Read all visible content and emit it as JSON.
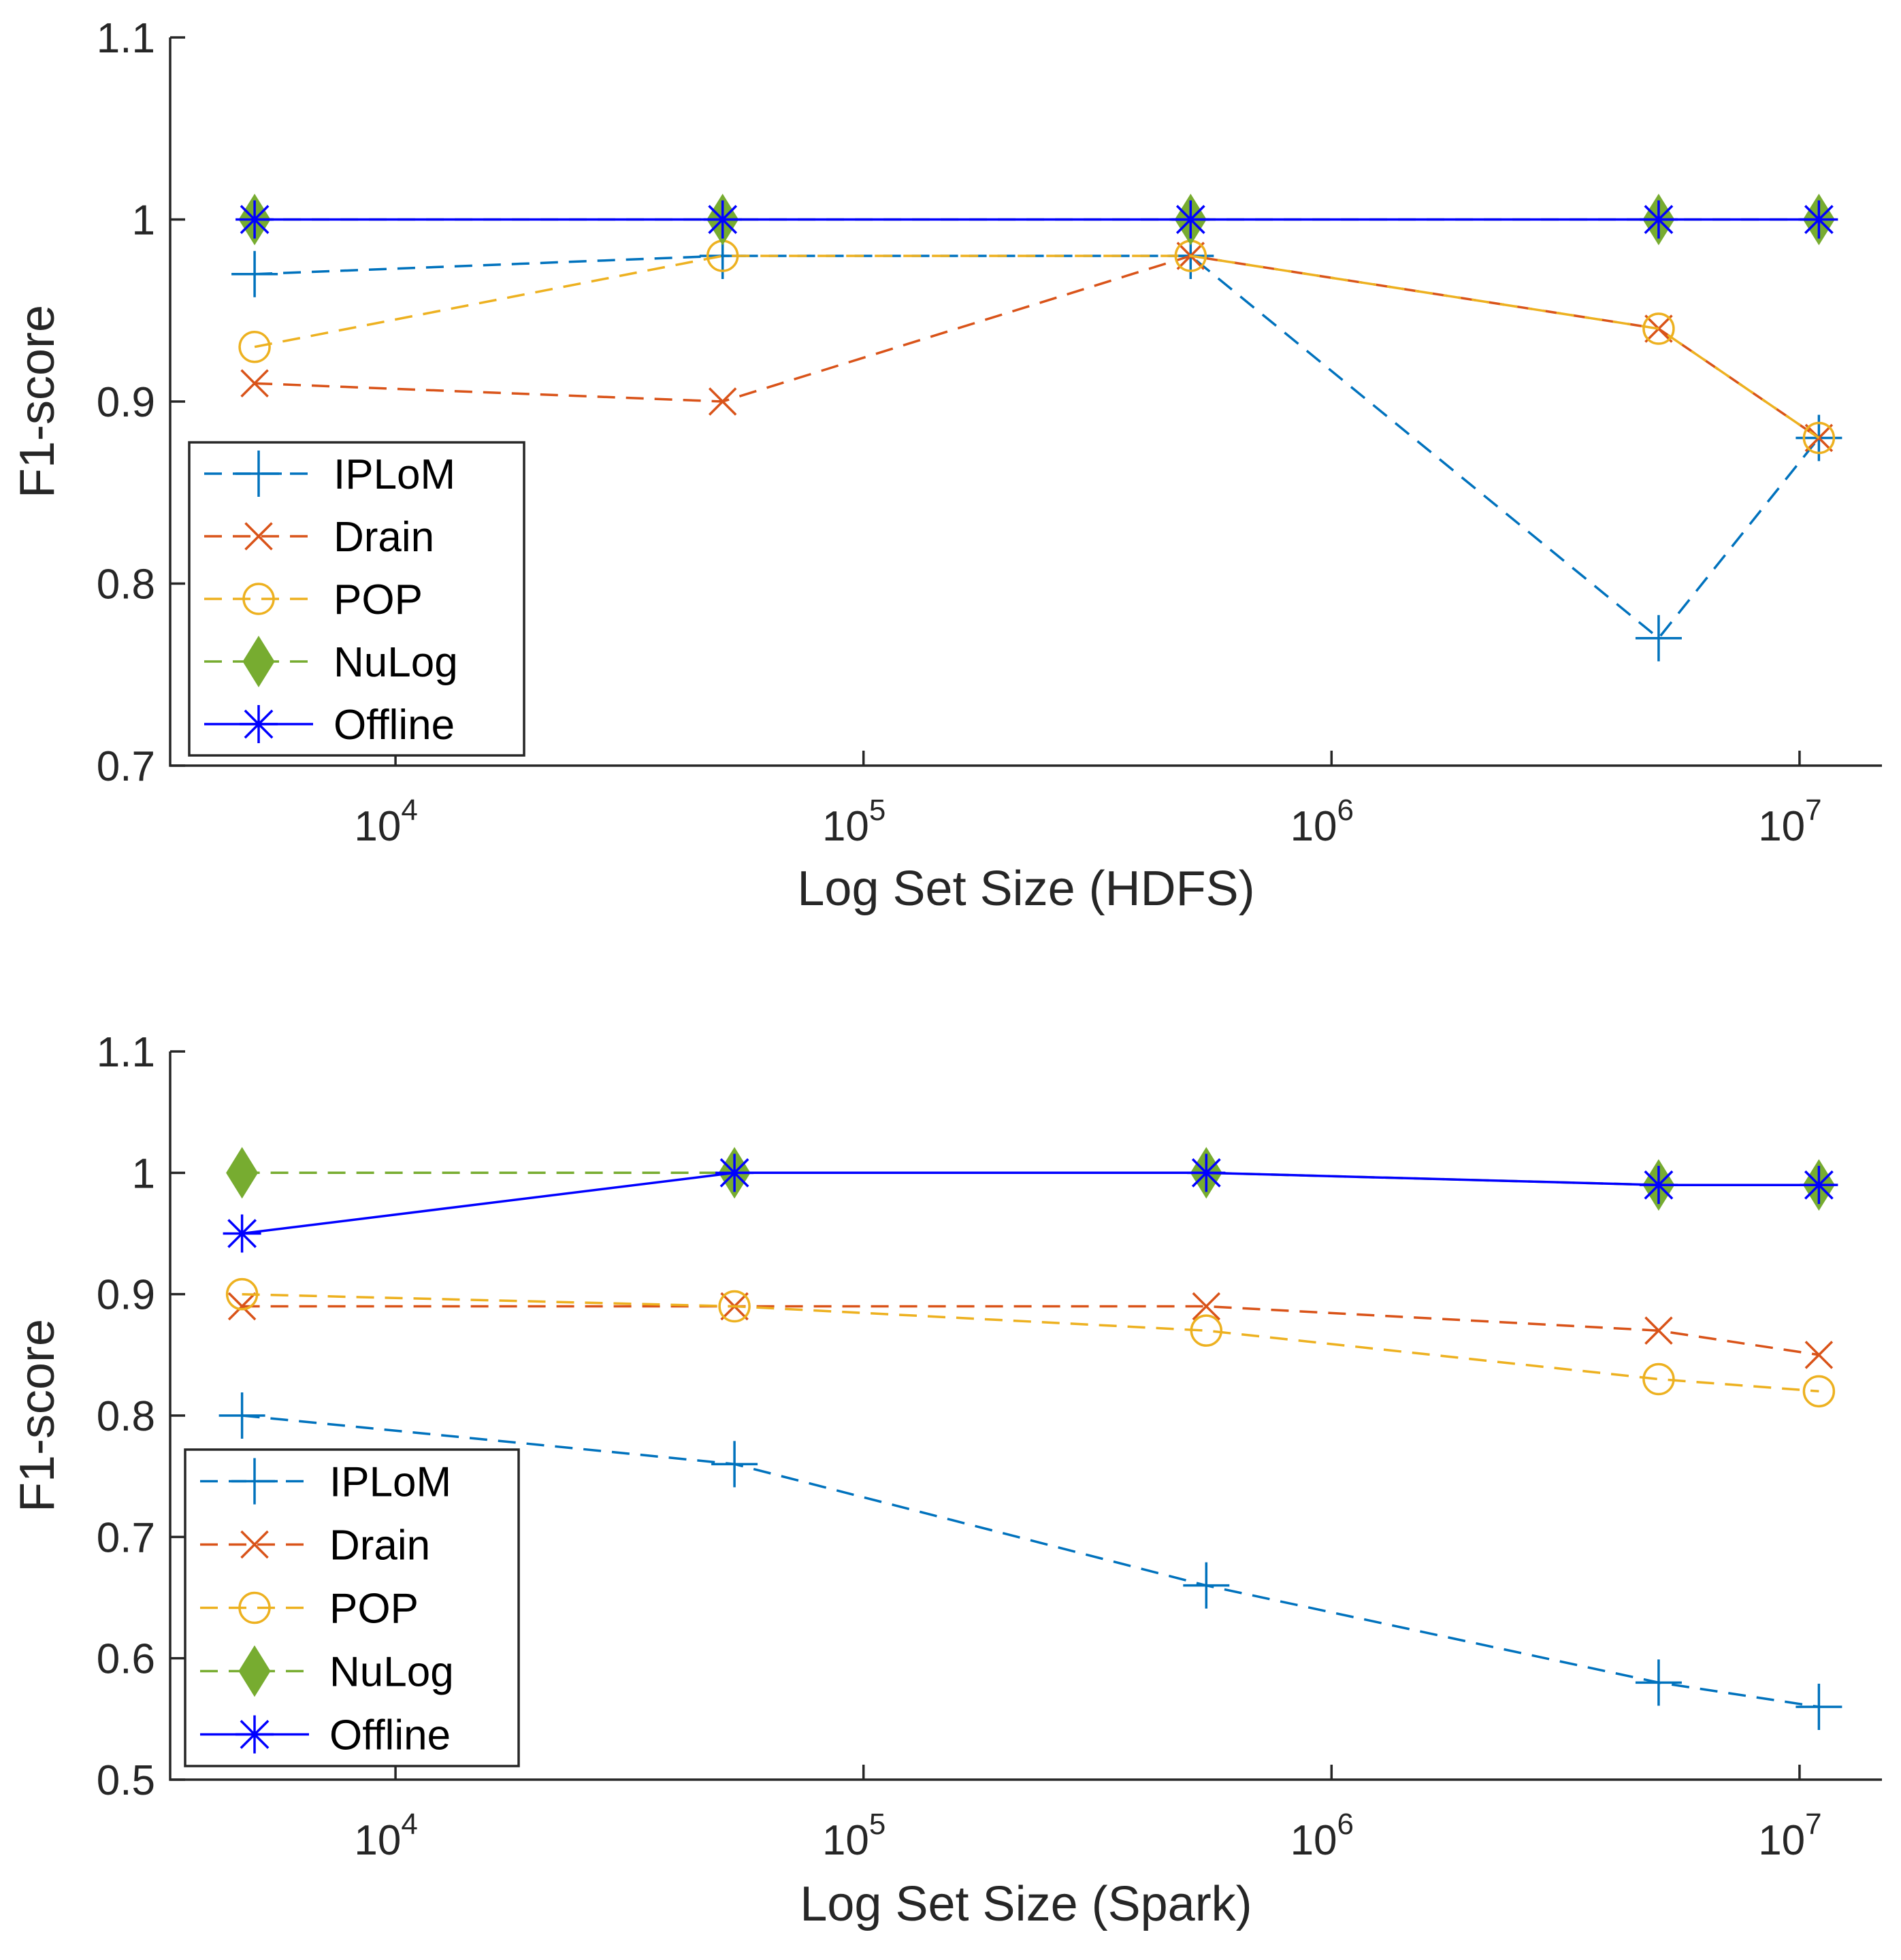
{
  "colors": {
    "IPLoM": "#0072BD",
    "Drain": "#D95319",
    "POP": "#EDB120",
    "NuLog": "#77AC30",
    "Offline": "#0000FF"
  },
  "chart_data": [
    {
      "type": "line",
      "xscale": "log",
      "xlabel": "Log Set Size (HDFS)",
      "ylabel": "F1-score",
      "xlim": [
        3300,
        15000000
      ],
      "ylim": [
        0.7,
        1.1
      ],
      "yticks": [
        "0.7",
        "0.8",
        "0.9",
        "1",
        "1.1"
      ],
      "xticks": [
        {
          "base": "10",
          "exp": "4"
        },
        {
          "base": "10",
          "exp": "5"
        },
        {
          "base": "10",
          "exp": "6"
        },
        {
          "base": "10",
          "exp": "7"
        }
      ],
      "legend_position": "lower-left",
      "x": [
        5000,
        50000,
        500000,
        5000000,
        11000000
      ],
      "series": [
        {
          "name": "IPLoM",
          "marker": "plus",
          "line": "dashed",
          "values": [
            0.97,
            0.98,
            0.98,
            0.77,
            0.88
          ]
        },
        {
          "name": "Drain",
          "marker": "x",
          "line": "dashed",
          "values": [
            0.91,
            0.9,
            0.98,
            0.94,
            0.88
          ]
        },
        {
          "name": "POP",
          "marker": "circle",
          "line": "dashed",
          "values": [
            0.93,
            0.98,
            0.98,
            0.94,
            0.88
          ]
        },
        {
          "name": "NuLog",
          "marker": "diamond",
          "line": "dashed",
          "values": [
            1,
            1,
            1,
            1,
            1
          ]
        },
        {
          "name": "Offline",
          "marker": "asterisk",
          "line": "solid",
          "values": [
            1,
            1,
            1,
            1,
            1
          ]
        }
      ]
    },
    {
      "type": "line",
      "xscale": "log",
      "xlabel": "Log Set Size (Spark)",
      "ylabel": "F1-score",
      "xlim": [
        3300,
        15000000
      ],
      "ylim": [
        0.5,
        1.1
      ],
      "yticks": [
        "0.5",
        "0.6",
        "0.7",
        "0.8",
        "0.9",
        "1",
        "1.1"
      ],
      "xticks": [
        {
          "base": "10",
          "exp": "4"
        },
        {
          "base": "10",
          "exp": "5"
        },
        {
          "base": "10",
          "exp": "6"
        },
        {
          "base": "10",
          "exp": "7"
        }
      ],
      "legend_position": "lower-left",
      "x": [
        4700,
        53000,
        540000,
        5000000,
        11000000
      ],
      "series": [
        {
          "name": "IPLoM",
          "marker": "plus",
          "line": "dashed",
          "values": [
            0.8,
            0.76,
            0.66,
            0.58,
            0.56
          ]
        },
        {
          "name": "Drain",
          "marker": "x",
          "line": "dashed",
          "values": [
            0.89,
            0.89,
            0.89,
            0.87,
            0.85
          ]
        },
        {
          "name": "POP",
          "marker": "circle",
          "line": "dashed",
          "values": [
            0.9,
            0.89,
            0.87,
            0.83,
            0.82
          ]
        },
        {
          "name": "NuLog",
          "marker": "diamond",
          "line": "dashed",
          "values": [
            1,
            1,
            1,
            0.99,
            0.99
          ]
        },
        {
          "name": "Offline",
          "marker": "asterisk",
          "line": "solid",
          "values": [
            0.95,
            1,
            1,
            0.99,
            0.99
          ]
        }
      ]
    }
  ]
}
